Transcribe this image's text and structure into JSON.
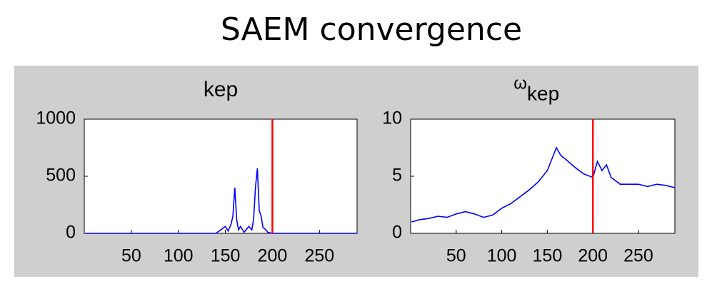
{
  "title": "SAEM convergence",
  "chart_data": [
    {
      "type": "line",
      "title": "kep",
      "x": [
        1,
        140,
        145,
        150,
        153,
        156,
        158,
        160,
        162,
        164,
        166,
        170,
        175,
        178,
        180,
        182,
        184,
        186,
        188,
        190,
        192,
        195,
        200,
        290
      ],
      "series": [
        {
          "color": "#0000ff",
          "values": [
            0,
            0,
            30,
            60,
            20,
            80,
            150,
            400,
            120,
            30,
            60,
            10,
            60,
            30,
            120,
            400,
            570,
            200,
            150,
            50,
            40,
            10,
            0,
            0
          ]
        }
      ],
      "xlim": [
        0,
        290
      ],
      "ylim": [
        0,
        1000
      ],
      "xticks": [
        50,
        100,
        150,
        200,
        250
      ],
      "yticks": [
        0,
        500,
        1000
      ],
      "vline": 200,
      "vline_color": "#ff0000"
    },
    {
      "type": "line",
      "title": "ω",
      "title_subscript": "kep",
      "x": [
        1,
        10,
        20,
        30,
        40,
        50,
        60,
        70,
        80,
        90,
        100,
        110,
        120,
        130,
        140,
        150,
        160,
        165,
        170,
        180,
        190,
        200,
        205,
        210,
        215,
        220,
        230,
        240,
        250,
        260,
        270,
        280,
        290
      ],
      "series": [
        {
          "color": "#0000ff",
          "values": [
            1,
            1.2,
            1.3,
            1.5,
            1.4,
            1.7,
            1.9,
            1.7,
            1.4,
            1.6,
            2.2,
            2.6,
            3.2,
            3.8,
            4.5,
            5.5,
            7.5,
            6.8,
            6.5,
            5.8,
            5.2,
            4.9,
            6.3,
            5.5,
            6.0,
            4.9,
            4.3,
            4.3,
            4.3,
            4.1,
            4.3,
            4.2,
            4.0
          ]
        }
      ],
      "xlim": [
        0,
        290
      ],
      "ylim": [
        0,
        10
      ],
      "xticks": [
        50,
        100,
        150,
        200,
        250
      ],
      "yticks": [
        0,
        5,
        10
      ],
      "vline": 200,
      "vline_color": "#ff0000"
    }
  ]
}
